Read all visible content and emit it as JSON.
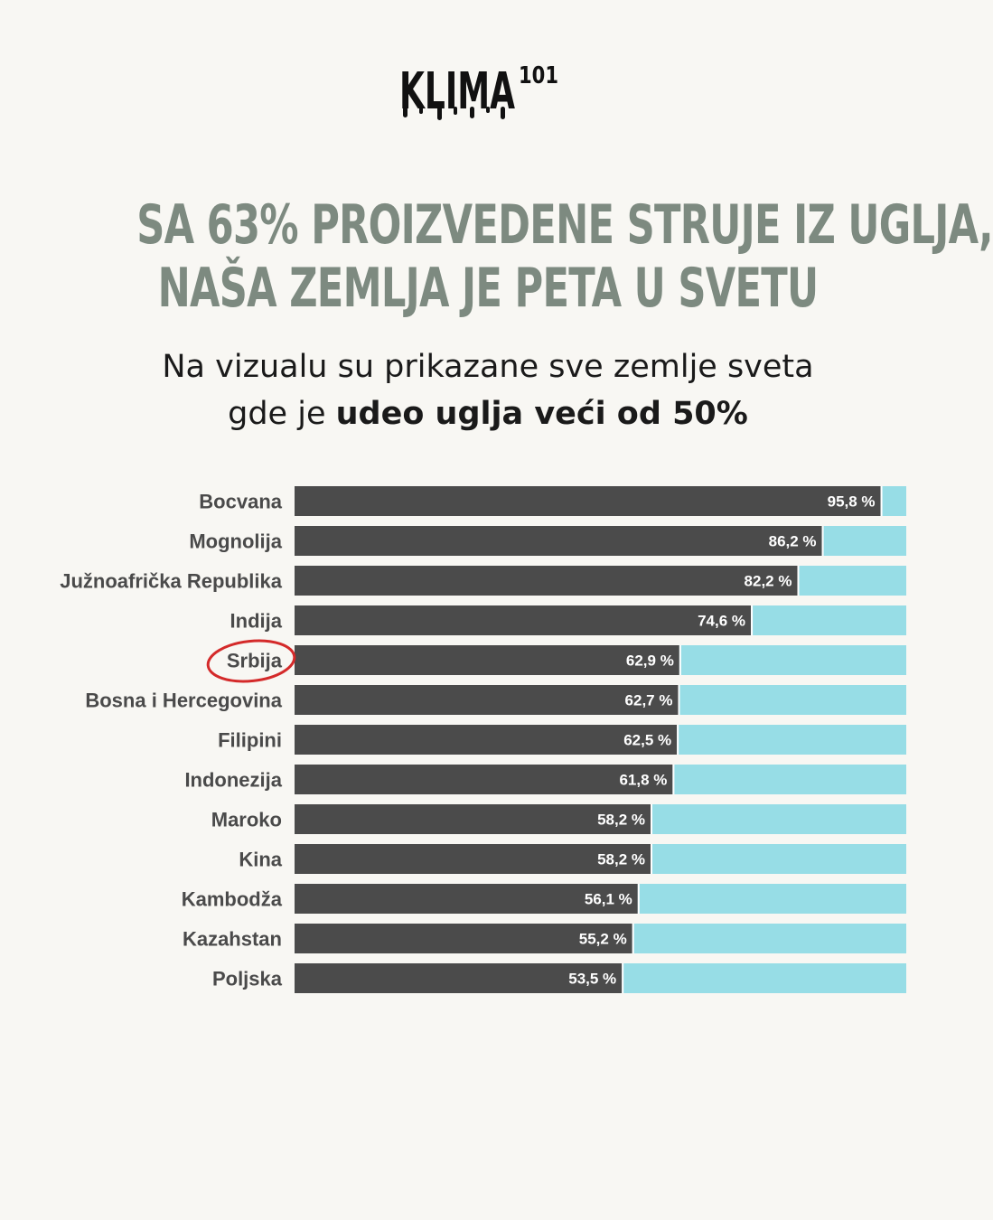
{
  "brand": {
    "name": "KLIMA",
    "superscript": "101"
  },
  "headline": {
    "line1": "SA 63% PROIZVEDENE STRUJE IZ UGLJA,",
    "line2": "NAŠA ZEMLJA JE PETA U SVETU"
  },
  "subtitle": {
    "line1": "Na vizualu su prikazane sve zemlje sveta",
    "line2_prefix": "gde je ",
    "line2_bold": "udeo uglja veći od 50%"
  },
  "colors": {
    "background": "#f8f7f3",
    "bar": "#4b4b4b",
    "bar_remainder": "#97dde6",
    "headline": "#7d8a80",
    "highlight_circle": "#d42a2a"
  },
  "chart_data": {
    "type": "bar",
    "orientation": "horizontal",
    "stacked_to": 100,
    "categories": [
      "Bocvana",
      "Mognolija",
      "Južnoafrička Republika",
      "Indija",
      "Srbija",
      "Bosna i Hercegovina",
      "Filipini",
      "Indonezija",
      "Maroko",
      "Kina",
      "Kambodža",
      "Kazahstan",
      "Poljska"
    ],
    "values": [
      95.8,
      86.2,
      82.2,
      74.6,
      62.9,
      62.7,
      62.5,
      61.8,
      58.2,
      58.2,
      56.1,
      55.2,
      53.5
    ],
    "value_labels": [
      "95,8 %",
      "86,2 %",
      "82,2 %",
      "74,6 %",
      "62,9 %",
      "62,7 %",
      "62,5 %",
      "61,8 %",
      "58,2 %",
      "58,2 %",
      "56,1 %",
      "55,2 %",
      "53,5 %"
    ],
    "highlighted": "Srbija",
    "xlim": [
      0,
      100
    ],
    "grid": false,
    "legend": "none"
  }
}
